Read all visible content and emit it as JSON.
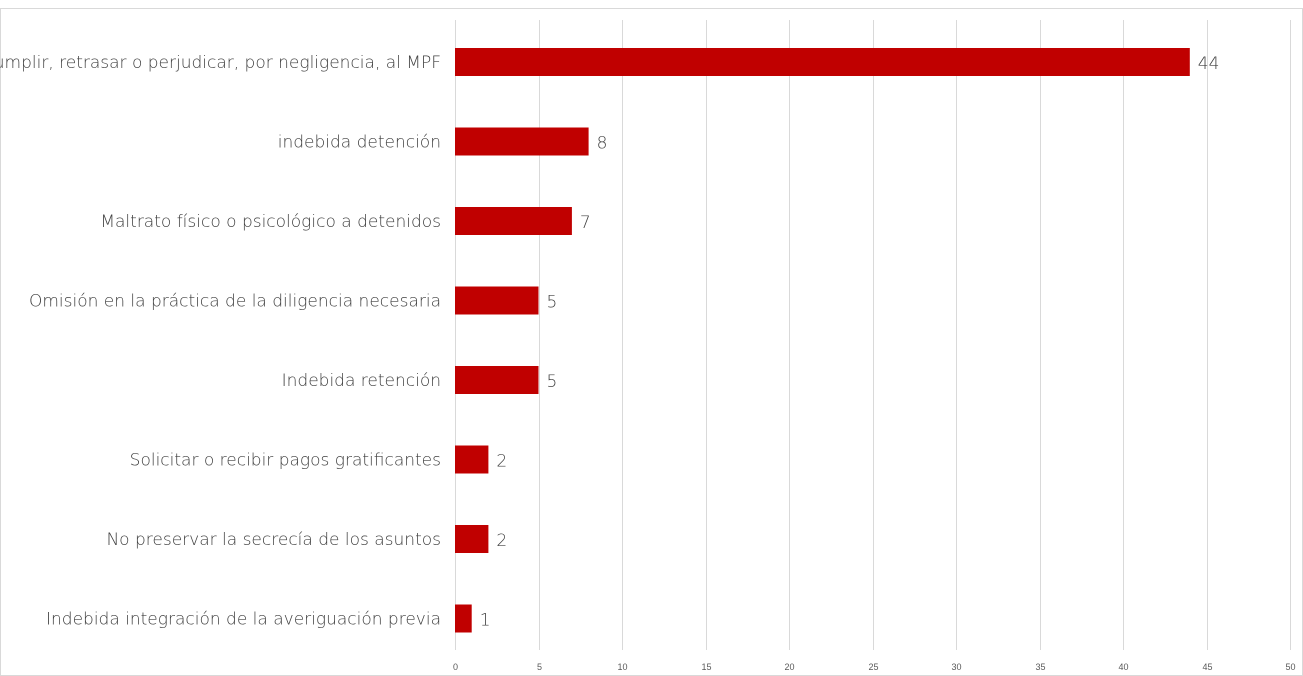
{
  "chart_data": {
    "type": "bar",
    "orientation": "horizontal",
    "categories": [
      "No cumplir, retrasar o perjudicar, por negligencia, al MPF",
      "indebida detención",
      "Maltrato físico o psicológico a detenidos",
      "Omisión en la práctica de la diligencia necesaria",
      "Indebida retención",
      "Solicitar o recibir pagos gratificantes",
      "No preservar la secrecía de los asuntos",
      "Indebida integración de la averiguación previa"
    ],
    "values": [
      44,
      8,
      7,
      5,
      5,
      2,
      2,
      1
    ],
    "xlim": [
      0,
      50
    ],
    "xticks": [
      0,
      5,
      10,
      15,
      20,
      25,
      30,
      35,
      40,
      45,
      50
    ],
    "grid": true,
    "legend": "none",
    "bar_color": "#c00000",
    "title": "",
    "xlabel": "",
    "ylabel": ""
  }
}
